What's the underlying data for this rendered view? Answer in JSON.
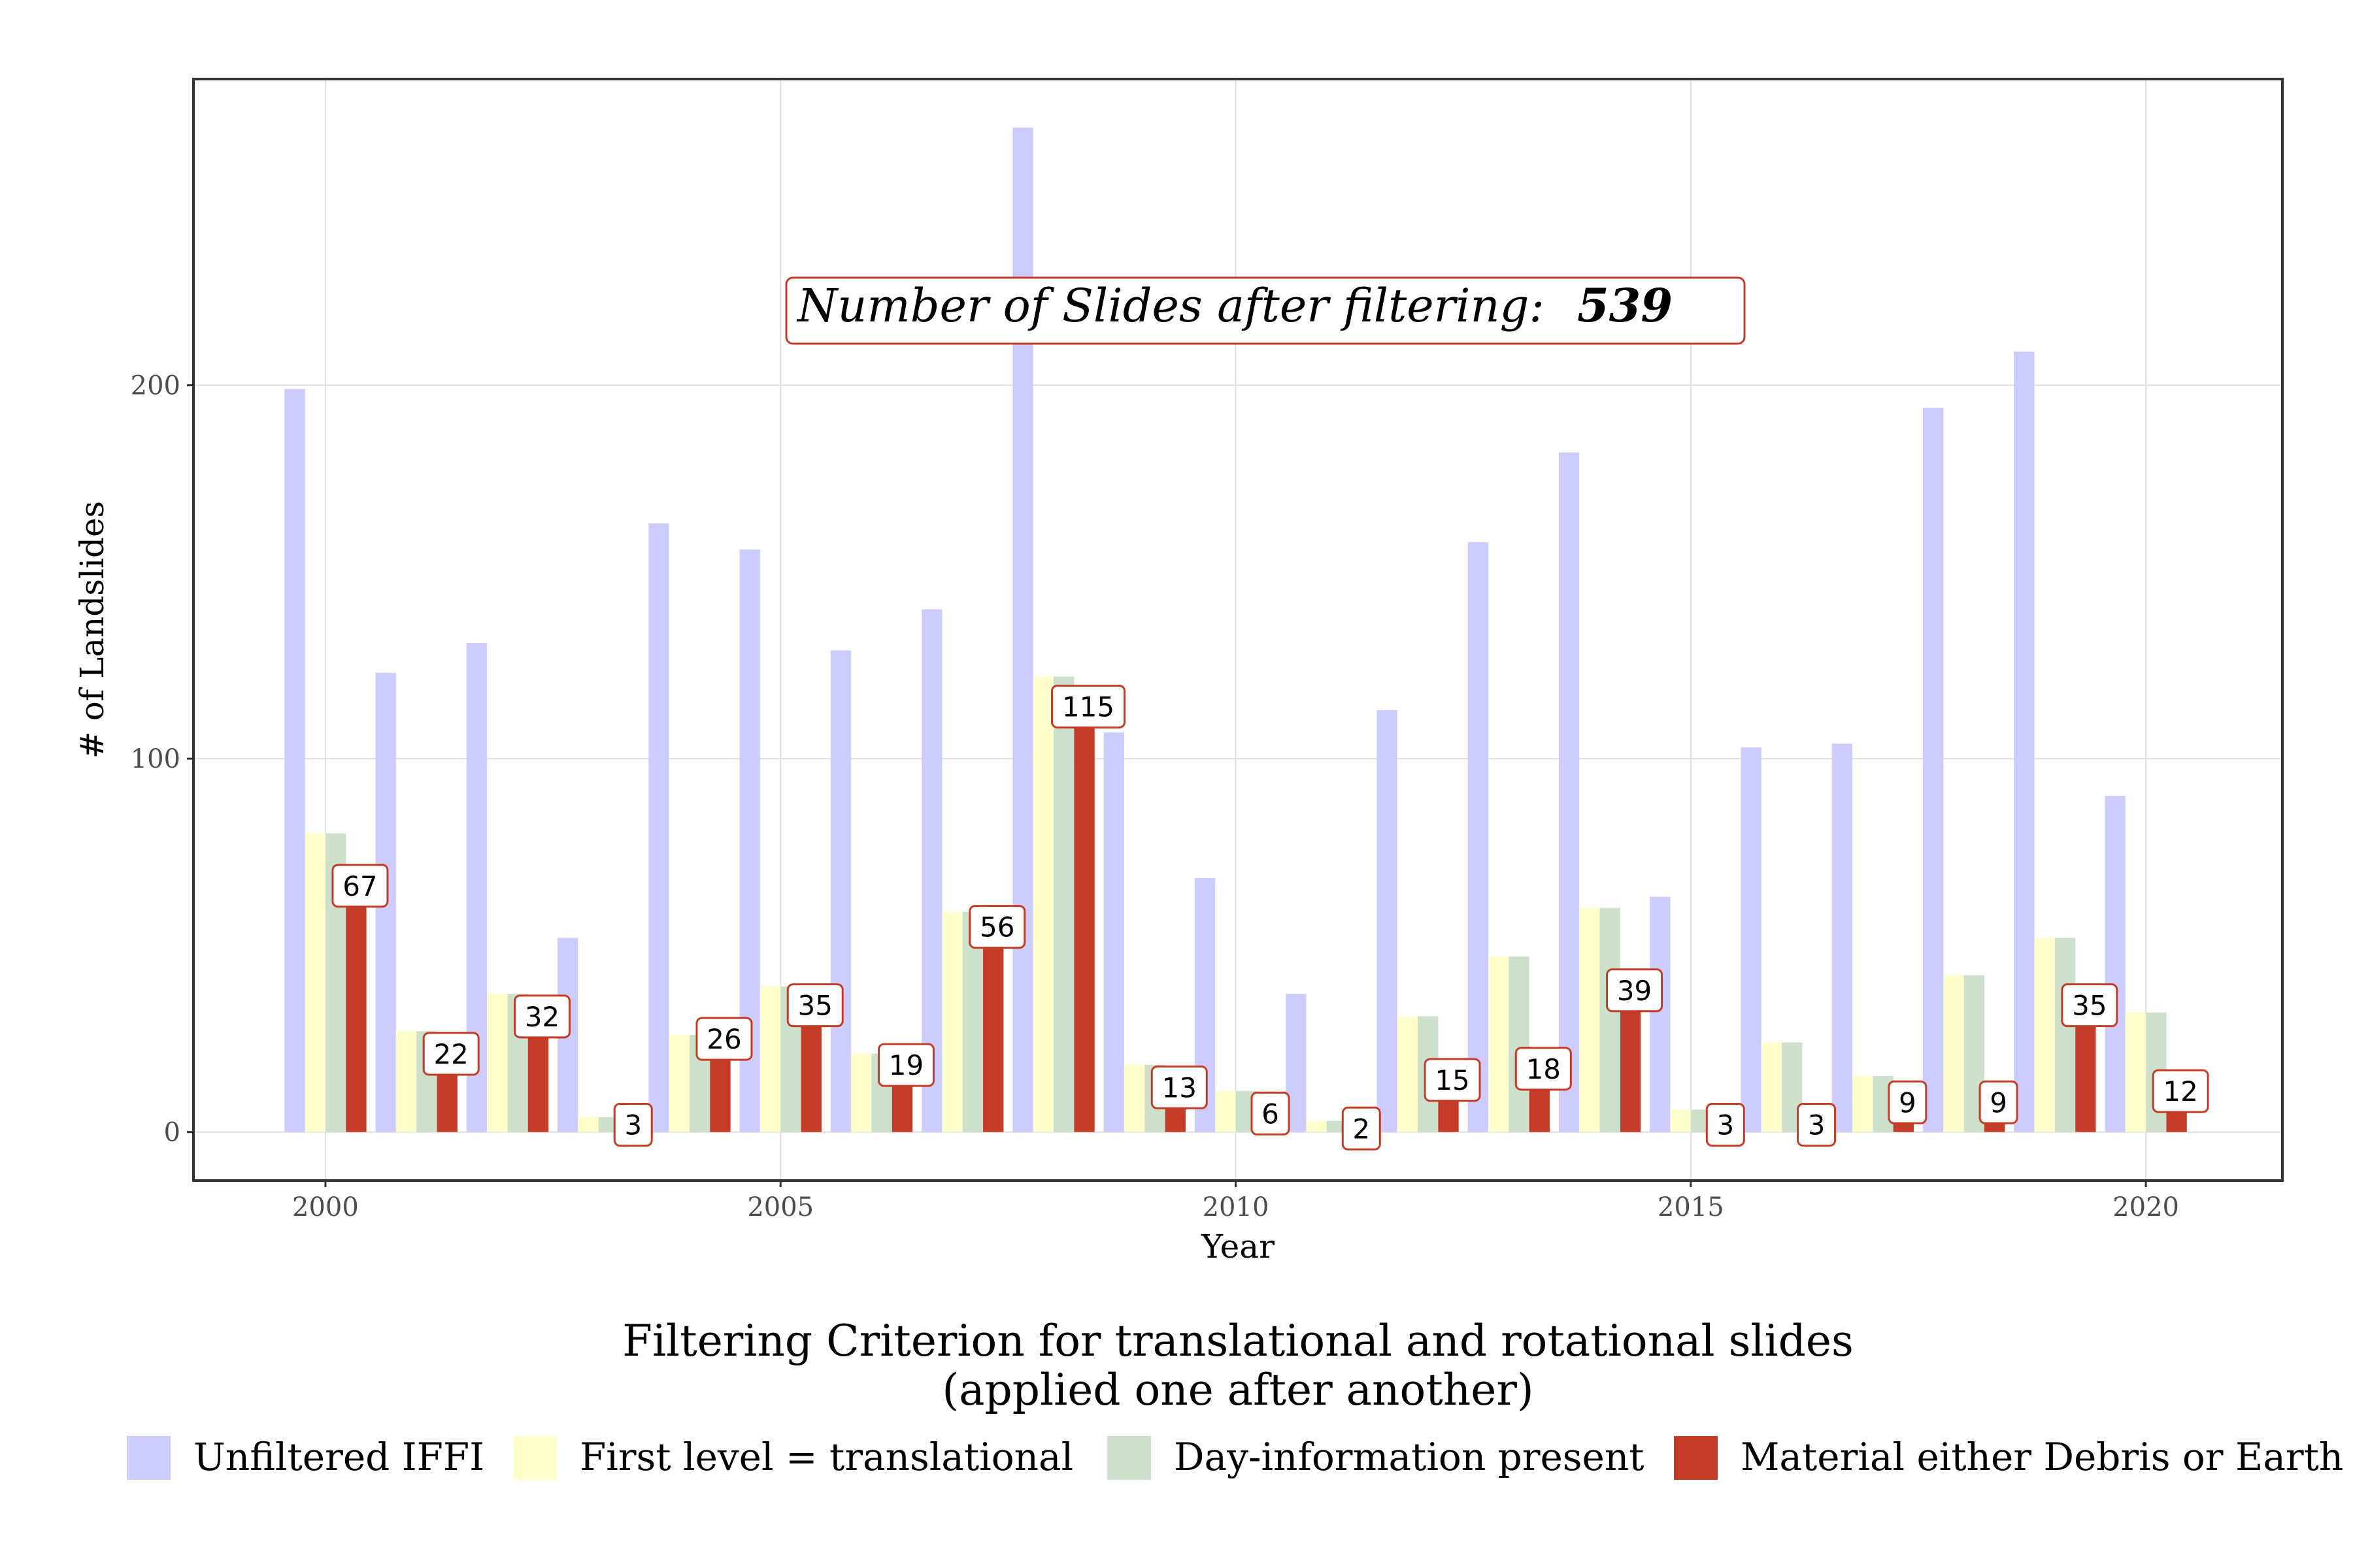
{
  "chart_data": {
    "type": "bar",
    "xlabel": "Year",
    "ylabel": "# of Landslides",
    "x_ticks": [
      2000,
      2005,
      2010,
      2015,
      2020
    ],
    "y_ticks": [
      0,
      100,
      200
    ],
    "ylim": [
      -13,
      282
    ],
    "xlim": [
      1998.55,
      2021.5
    ],
    "grid": true,
    "years": [
      2000,
      2001,
      2002,
      2003,
      2004,
      2005,
      2006,
      2007,
      2008,
      2009,
      2010,
      2011,
      2012,
      2013,
      2014,
      2015,
      2016,
      2017,
      2018,
      2019,
      2020
    ],
    "series": [
      {
        "name": "Unfiltered IFFI",
        "color": "#ccccff",
        "values": [
          199,
          123,
          131,
          52,
          163,
          156,
          129,
          140,
          269,
          107,
          68,
          37,
          113,
          158,
          182,
          63,
          103,
          104,
          194,
          209,
          90
        ]
      },
      {
        "name": "First level = translational",
        "color": "#ffffcc",
        "values": [
          80,
          27,
          37,
          4,
          26,
          39,
          21,
          59,
          122,
          18,
          11,
          3,
          31,
          47,
          60,
          6,
          24,
          15,
          42,
          52,
          32
        ]
      },
      {
        "name": "Day-information present",
        "color": "#cce0cc",
        "values": [
          80,
          27,
          37,
          4,
          26,
          39,
          21,
          59,
          122,
          18,
          11,
          3,
          31,
          47,
          60,
          6,
          24,
          15,
          42,
          52,
          32
        ]
      },
      {
        "name": "Material either Debris or Earth",
        "color": "#c43c27",
        "values": [
          67,
          22,
          32,
          3,
          26,
          35,
          19,
          56,
          115,
          13,
          6,
          2,
          15,
          18,
          39,
          3,
          3,
          9,
          9,
          35,
          12
        ]
      }
    ],
    "legend": {
      "title_line1": "Filtering Criterion for translational and rotational slides",
      "title_line2": "(applied one after another)",
      "position": "bottom"
    },
    "annotation": {
      "prefix": "Number of Slides after filtering:",
      "value": "539"
    }
  }
}
